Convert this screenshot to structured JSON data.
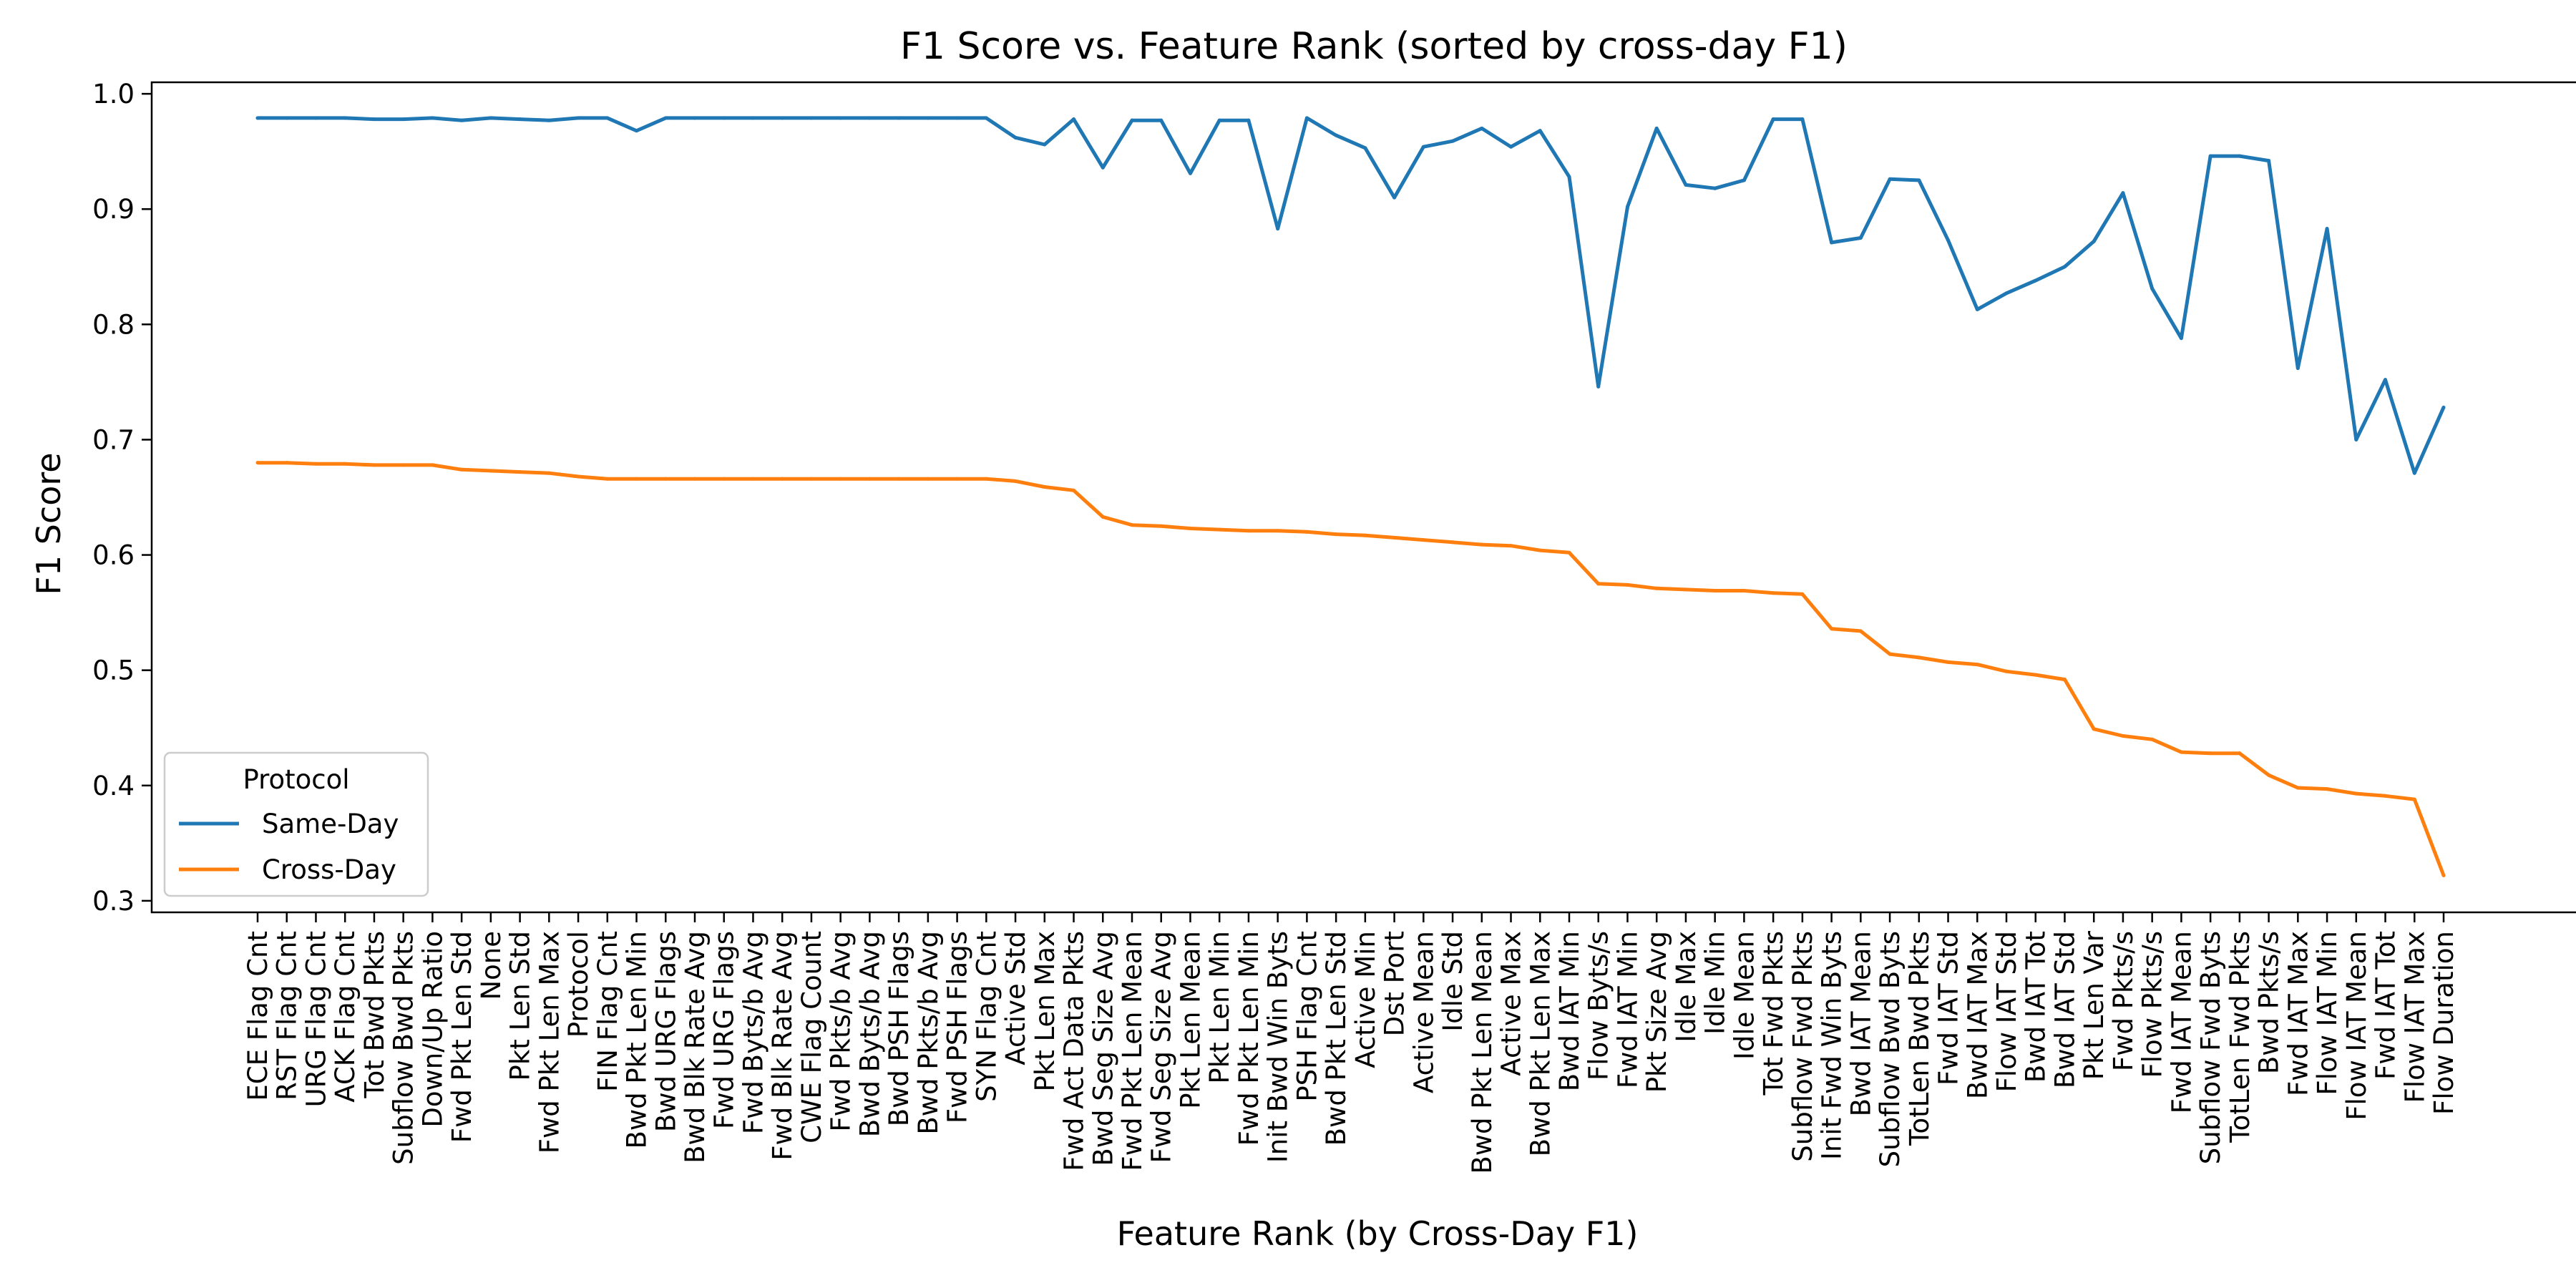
{
  "chart_data": {
    "type": "line",
    "title": "F1 Score vs. Feature Rank (sorted by cross-day F1)",
    "xlabel": "Feature Rank (by Cross-Day F1)",
    "ylabel": "F1 Score",
    "ylim": [
      0.29,
      1.01
    ],
    "yticks": [
      "1.0",
      "0.9",
      "0.8",
      "0.7",
      "0.6",
      "0.5",
      "0.4",
      "0.3"
    ],
    "ytick_values": [
      1.0,
      0.9,
      0.8,
      0.7,
      0.6,
      0.5,
      0.4,
      0.3
    ],
    "grid": false,
    "legend": {
      "title": "Protocol",
      "placement": "lower-left"
    },
    "categories": [
      "ECE Flag Cnt",
      "RST Flag Cnt",
      "URG Flag Cnt",
      "ACK Flag Cnt",
      "Tot Bwd Pkts",
      "Subflow Bwd Pkts",
      "Down/Up Ratio",
      "Fwd Pkt Len Std",
      "None",
      "Pkt Len Std",
      "Fwd Pkt Len Max",
      "Protocol",
      "FIN Flag Cnt",
      "Bwd Pkt Len Min",
      "Bwd URG Flags",
      "Bwd Blk Rate Avg",
      "Fwd URG Flags",
      "Fwd Byts/b Avg",
      "Fwd Blk Rate Avg",
      "CWE Flag Count",
      "Fwd Pkts/b Avg",
      "Bwd Byts/b Avg",
      "Bwd PSH Flags",
      "Bwd Pkts/b Avg",
      "Fwd PSH Flags",
      "SYN Flag Cnt",
      "Active Std",
      "Pkt Len Max",
      "Fwd Act Data Pkts",
      "Bwd Seg Size Avg",
      "Fwd Pkt Len Mean",
      "Fwd Seg Size Avg",
      "Pkt Len Mean",
      "Pkt Len Min",
      "Fwd Pkt Len Min",
      "Init Bwd Win Byts",
      "PSH Flag Cnt",
      "Bwd Pkt Len Std",
      "Active Min",
      "Dst Port",
      "Active Mean",
      "Idle Std",
      "Bwd Pkt Len Mean",
      "Active Max",
      "Bwd Pkt Len Max",
      "Bwd IAT Min",
      "Flow Byts/s",
      "Fwd IAT Min",
      "Pkt Size Avg",
      "Idle Max",
      "Idle Min",
      "Idle Mean",
      "Tot Fwd Pkts",
      "Subflow Fwd Pkts",
      "Init Fwd Win Byts",
      "Bwd IAT Mean",
      "Subflow Bwd Byts",
      "TotLen Bwd Pkts",
      "Fwd IAT Std",
      "Bwd IAT Max",
      "Flow IAT Std",
      "Bwd IAT Tot",
      "Bwd IAT Std",
      "Pkt Len Var",
      "Fwd Pkts/s",
      "Flow Pkts/s",
      "Fwd IAT Mean",
      "Subflow Fwd Byts",
      "TotLen Fwd Pkts",
      "Bwd Pkts/s",
      "Fwd IAT Max",
      "Flow IAT Min",
      "Flow IAT Mean",
      "Fwd IAT Tot",
      "Flow IAT Max",
      "Flow Duration"
    ],
    "series": [
      {
        "name": "Same-Day",
        "color": "#1f77b4",
        "values": [
          0.979,
          0.979,
          0.979,
          0.979,
          0.978,
          0.978,
          0.979,
          0.977,
          0.979,
          0.978,
          0.977,
          0.979,
          0.979,
          0.968,
          0.979,
          0.979,
          0.979,
          0.979,
          0.979,
          0.979,
          0.979,
          0.979,
          0.979,
          0.979,
          0.979,
          0.979,
          0.962,
          0.956,
          0.978,
          0.936,
          0.977,
          0.977,
          0.931,
          0.977,
          0.977,
          0.883,
          0.979,
          0.964,
          0.953,
          0.91,
          0.954,
          0.959,
          0.97,
          0.954,
          0.968,
          0.928,
          0.746,
          0.902,
          0.97,
          0.921,
          0.918,
          0.925,
          0.978,
          0.978,
          0.871,
          0.875,
          0.926,
          0.925,
          0.873,
          0.813,
          0.827,
          0.838,
          0.85,
          0.872,
          0.914,
          0.831,
          0.788,
          0.946,
          0.946,
          0.942,
          0.762,
          0.883,
          0.7,
          0.752,
          0.671,
          0.728
        ]
      },
      {
        "name": "Cross-Day",
        "color": "#ff7f0e",
        "values": [
          0.68,
          0.68,
          0.679,
          0.679,
          0.678,
          0.678,
          0.678,
          0.674,
          0.673,
          0.672,
          0.671,
          0.668,
          0.666,
          0.666,
          0.666,
          0.666,
          0.666,
          0.666,
          0.666,
          0.666,
          0.666,
          0.666,
          0.666,
          0.666,
          0.666,
          0.666,
          0.664,
          0.659,
          0.656,
          0.633,
          0.626,
          0.625,
          0.623,
          0.622,
          0.621,
          0.621,
          0.62,
          0.618,
          0.617,
          0.615,
          0.613,
          0.611,
          0.609,
          0.608,
          0.604,
          0.602,
          0.575,
          0.574,
          0.571,
          0.57,
          0.569,
          0.569,
          0.567,
          0.566,
          0.536,
          0.534,
          0.514,
          0.511,
          0.507,
          0.505,
          0.499,
          0.496,
          0.492,
          0.449,
          0.443,
          0.44,
          0.429,
          0.428,
          0.428,
          0.409,
          0.398,
          0.397,
          0.393,
          0.391,
          0.388,
          0.322
        ]
      }
    ]
  }
}
